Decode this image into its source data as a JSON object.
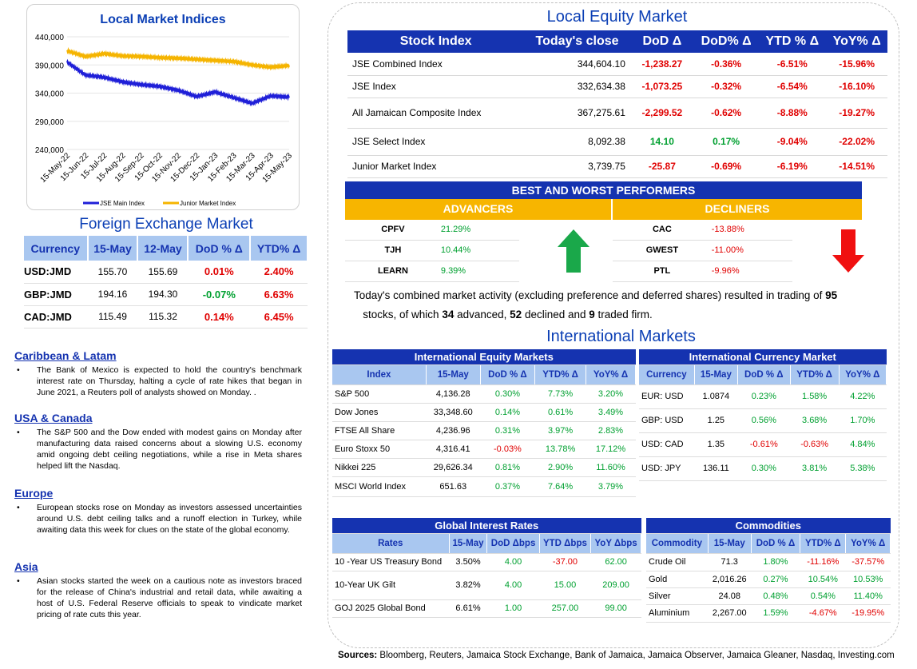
{
  "chart": {
    "title": "Local Market Indices",
    "yticks": [
      "440,000",
      "390,000",
      "340,000",
      "290,000",
      "240,000"
    ],
    "xticks": [
      "15-May-22",
      "15-Jun-22",
      "15-Jul-22",
      "15-Aug-22",
      "15-Sep-22",
      "15-Oct-22",
      "15-Nov-22",
      "15-Dec-22",
      "15-Jan-23",
      "15-Feb-23",
      "15-Mar-23",
      "15-Apr-23",
      "15-May-23"
    ],
    "legend": [
      "JSE Main Index",
      "Junior Market Index"
    ],
    "colors": [
      "#1f1fd8",
      "#f5b400"
    ]
  },
  "chart_data": {
    "type": "line",
    "ylim": [
      240000,
      440000
    ],
    "x": [
      "15-May-22",
      "15-Jun-22",
      "15-Jul-22",
      "15-Aug-22",
      "15-Sep-22",
      "15-Oct-22",
      "15-Nov-22",
      "15-Dec-22",
      "15-Jan-23",
      "15-Feb-23",
      "15-Mar-23",
      "15-Apr-23",
      "15-May-23"
    ],
    "series": [
      {
        "name": "JSE Main Index",
        "values": [
          395000,
          372000,
          368000,
          360000,
          355000,
          352000,
          345000,
          334000,
          342000,
          332000,
          322000,
          335000,
          333000
        ]
      },
      {
        "name": "Junior Market Index",
        "values": [
          415000,
          405000,
          410000,
          406000,
          405000,
          403000,
          402000,
          400000,
          398000,
          396000,
          390000,
          386000,
          389000
        ]
      }
    ]
  },
  "fx": {
    "title": "Foreign Exchange Market",
    "headers": [
      "Currency",
      "15-May",
      "12-May",
      "DoD % Δ",
      "YTD% Δ"
    ],
    "rows": [
      [
        "USD:JMD",
        "155.70",
        "155.69",
        "0.01%",
        "2.40%"
      ],
      [
        "GBP:JMD",
        "194.16",
        "194.30",
        "-0.07%",
        "6.63%"
      ],
      [
        "CAD:JMD",
        "115.49",
        "115.32",
        "0.14%",
        "6.45%"
      ]
    ]
  },
  "news": [
    {
      "h": "Caribbean & Latam",
      "t": "The Bank of Mexico is expected to hold the country's benchmark interest rate on Thursday, halting a cycle of rate hikes that began in June 2021, a Reuters poll of analysts showed on Monday. ."
    },
    {
      "h": "USA & Canada",
      "t": "The S&P 500 and the Dow ended with modest gains on Monday after manufacturing data raised concerns about a slowing U.S. economy amid ongoing debt ceiling negotiations, while a rise in Meta shares helped lift the Nasdaq."
    },
    {
      "h": "Europe",
      "t": "European stocks rose on Monday as investors assessed uncertainties around U.S. debt ceiling talks and a runoff election in Turkey, while awaiting data this week for clues on the state of the global economy."
    },
    {
      "h": "Asia",
      "t": "Asian stocks started the week on a cautious note as investors braced for the release of China's industrial and retail data, while awaiting a host of U.S. Federal Reserve officials to speak to vindicate market pricing of rate cuts this year."
    }
  ],
  "equity": {
    "title": "Local Equity Market",
    "headers": [
      "Stock Index",
      "Today's close",
      "DoD Δ",
      "DoD% Δ",
      "YTD % Δ",
      "YoY% Δ"
    ],
    "rows": [
      [
        "JSE Combined Index",
        "344,604.10",
        "-1,238.27",
        "-0.36%",
        "-6.51%",
        "-15.96%"
      ],
      [
        "JSE Index",
        "332,634.38",
        "-1,073.25",
        "-0.32%",
        "-6.54%",
        "-16.10%"
      ],
      [
        "All Jamaican Composite Index",
        "367,275.61",
        "-2,299.52",
        "-0.62%",
        "-8.88%",
        "-19.27%"
      ],
      [
        "JSE Select Index",
        "8,092.38",
        "14.10",
        "0.17%",
        "-9.04%",
        "-22.02%"
      ],
      [
        "Junior Market Index",
        "3,739.75",
        "-25.87",
        "-0.69%",
        "-6.19%",
        "-14.51%"
      ]
    ]
  },
  "performers": {
    "title": "BEST AND WORST PERFORMERS",
    "adv_label": "ADVANCERS",
    "dec_label": "DECLINERS",
    "adv": [
      [
        "CPFV",
        "21.29%"
      ],
      [
        "TJH",
        "10.44%"
      ],
      [
        "LEARN",
        "9.39%"
      ]
    ],
    "dec": [
      [
        "CAC",
        "-13.88%"
      ],
      [
        "GWEST",
        "-11.00%"
      ],
      [
        "PTL",
        "-9.96%"
      ]
    ]
  },
  "summary": {
    "a": "Today's combined market activity (excluding preference and deferred shares) resulted in trading of ",
    "n1": "95",
    "b": " stocks, of which ",
    "n2": "34",
    "c": " advanced, ",
    "n3": "52",
    "d": " declined and ",
    "n4": "9",
    "e": " traded firm."
  },
  "intl_title": "International Markets",
  "ieq": {
    "title": "International Equity Markets",
    "headers": [
      "Index",
      "15-May",
      "DoD % Δ",
      "YTD% Δ",
      "YoY% Δ"
    ],
    "rows": [
      [
        "S&P 500",
        "4,136.28",
        "0.30%",
        "7.73%",
        "3.20%"
      ],
      [
        "Dow Jones",
        "33,348.60",
        "0.14%",
        "0.61%",
        "3.49%"
      ],
      [
        "FTSE All Share",
        "4,236.96",
        "0.31%",
        "3.97%",
        "2.83%"
      ],
      [
        "Euro Stoxx 50",
        "4,316.41",
        "-0.03%",
        "13.78%",
        "17.12%"
      ],
      [
        "Nikkei 225",
        "29,626.34",
        "0.81%",
        "2.90%",
        "11.60%"
      ],
      [
        "MSCI World Index",
        "651.63",
        "0.37%",
        "7.64%",
        "3.79%"
      ]
    ]
  },
  "icur": {
    "title": "International Currency Market",
    "headers": [
      "Currency",
      "15-May",
      "DoD % Δ",
      "YTD% Δ",
      "YoY% Δ"
    ],
    "rows": [
      [
        "EUR: USD",
        "1.0874",
        "0.23%",
        "1.58%",
        "4.22%"
      ],
      [
        "GBP: USD",
        "1.25",
        "0.56%",
        "3.68%",
        "1.70%"
      ],
      [
        "USD: CAD",
        "1.35",
        "-0.61%",
        "-0.63%",
        "4.84%"
      ],
      [
        "USD: JPY",
        "136.11",
        "0.30%",
        "3.81%",
        "5.38%"
      ]
    ]
  },
  "rates": {
    "title": "Global Interest Rates",
    "headers": [
      "Rates",
      "15-May",
      "DoD Δbps",
      "YTD Δbps",
      "YoY Δbps"
    ],
    "rows": [
      [
        "10 -Year US Treasury Bond",
        "3.50%",
        "4.00",
        "-37.00",
        "62.00"
      ],
      [
        "10-Year UK Gilt",
        "3.82%",
        "4.00",
        "15.00",
        "209.00"
      ],
      [
        "GOJ 2025 Global Bond",
        "6.61%",
        "1.00",
        "257.00",
        "99.00"
      ]
    ]
  },
  "comm": {
    "title": "Commodities",
    "headers": [
      "Commodity",
      "15-May",
      "DoD % Δ",
      "YTD% Δ",
      "YoY% Δ"
    ],
    "rows": [
      [
        "Crude Oil",
        "71.3",
        "1.80%",
        "-11.16%",
        "-37.57%"
      ],
      [
        "Gold",
        "2,016.26",
        "0.27%",
        "10.54%",
        "10.53%"
      ],
      [
        "Silver",
        "24.08",
        "0.48%",
        "0.54%",
        "11.40%"
      ],
      [
        "Aluminium",
        "2,267.00",
        "1.59%",
        "-4.67%",
        "-19.95%"
      ]
    ]
  },
  "sources": {
    "label": "Sources:",
    "text": " Bloomberg, Reuters, Jamaica Stock Exchange, Bank of Jamaica, Jamaica Observer, Jamaica Gleaner, Nasdaq, Investing.com"
  }
}
